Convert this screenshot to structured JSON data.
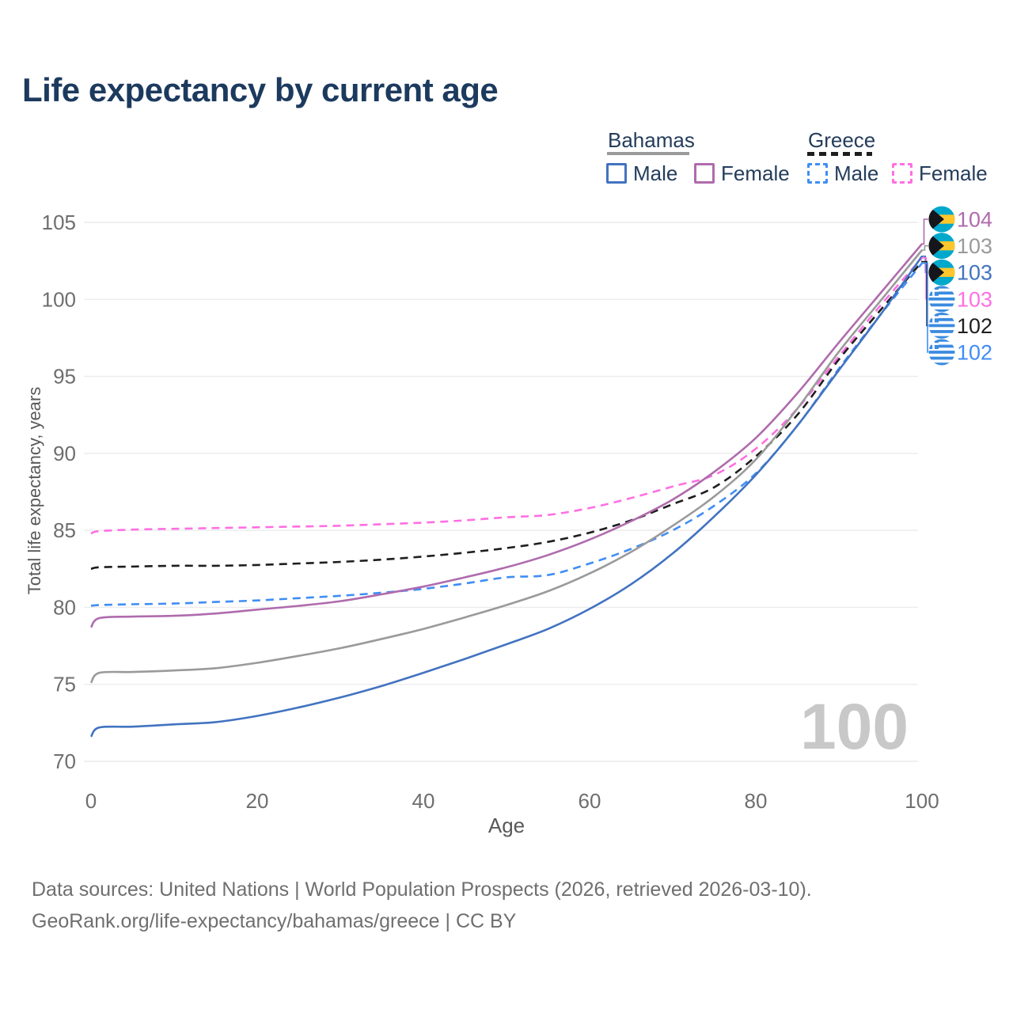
{
  "title": "Life expectancy by current age",
  "legend": {
    "bahamas": {
      "label": "Bahamas",
      "male_label": "Male",
      "female_label": "Female"
    },
    "greece": {
      "label": "Greece",
      "male_label": "Male",
      "female_label": "Female"
    }
  },
  "age_indicator": "100",
  "footer": {
    "line1": "Data sources: United Nations | World Population Prospects (2026, retrieved 2026-03-10).",
    "line2": "GeoRank.org/life-expectancy/bahamas/greece | CC BY"
  },
  "chart_data": {
    "type": "line",
    "title": "Life expectancy by current age",
    "xlabel": "Age",
    "ylabel": "Total life expectancy, years",
    "xlim": [
      0,
      100
    ],
    "ylim": [
      70,
      105
    ],
    "x_ticks": [
      0,
      20,
      40,
      60,
      80,
      100
    ],
    "y_ticks": [
      70,
      75,
      80,
      85,
      90,
      95,
      100,
      105
    ],
    "grid": "horizontal",
    "legend_position": "top-right",
    "x": [
      0,
      1,
      5,
      10,
      15,
      20,
      25,
      30,
      35,
      40,
      45,
      50,
      55,
      60,
      65,
      70,
      75,
      80,
      85,
      90,
      95,
      100
    ],
    "series": [
      {
        "key": "greece_female",
        "name": "Greece — Female",
        "country": "Greece",
        "sex": "Female",
        "color": "#ff6fe3",
        "dashed": true,
        "flag": "greece",
        "end_label": "103",
        "values": [
          84.8,
          84.95,
          85.05,
          85.1,
          85.15,
          85.2,
          85.25,
          85.3,
          85.4,
          85.5,
          85.65,
          85.85,
          86.0,
          86.45,
          87.1,
          87.85,
          88.6,
          90.3,
          92.9,
          96.3,
          99.6,
          102.7
        ]
      },
      {
        "key": "greece_total",
        "name": "Greece — Both sexes",
        "country": "Greece",
        "sex": "Both",
        "color": "#1e1e1e",
        "dashed": true,
        "flag": "greece",
        "end_label": "102",
        "values": [
          82.5,
          82.6,
          82.65,
          82.7,
          82.7,
          82.75,
          82.85,
          82.95,
          83.1,
          83.3,
          83.55,
          83.85,
          84.25,
          84.85,
          85.65,
          86.7,
          87.8,
          89.8,
          92.5,
          96.1,
          99.3,
          102.45
        ]
      },
      {
        "key": "greece_male",
        "name": "Greece — Male",
        "country": "Greece",
        "sex": "Male",
        "color": "#3f8df5",
        "dashed": true,
        "flag": "greece",
        "end_label": "102",
        "values": [
          80.1,
          80.15,
          80.2,
          80.25,
          80.35,
          80.45,
          80.6,
          80.75,
          80.95,
          81.2,
          81.55,
          81.95,
          82.1,
          82.85,
          83.8,
          85.0,
          86.6,
          88.7,
          91.8,
          95.5,
          99.0,
          102.35
        ]
      },
      {
        "key": "bahamas_total",
        "name": "Bahamas — Both sexes",
        "country": "Bahamas",
        "sex": "Both",
        "color": "#9a9a9a",
        "dashed": false,
        "flag": "bahamas",
        "end_label": "103",
        "values": [
          75.1,
          75.75,
          75.8,
          75.9,
          76.05,
          76.4,
          76.85,
          77.35,
          77.95,
          78.6,
          79.35,
          80.15,
          81.05,
          82.2,
          83.6,
          85.3,
          87.2,
          89.6,
          92.9,
          96.6,
          99.9,
          103.2
        ]
      },
      {
        "key": "bahamas_female",
        "name": "Bahamas — Female",
        "country": "Bahamas",
        "sex": "Female",
        "color": "#af6bad",
        "dashed": false,
        "flag": "bahamas",
        "end_label": "104",
        "values": [
          78.7,
          79.3,
          79.4,
          79.45,
          79.6,
          79.85,
          80.1,
          80.4,
          80.85,
          81.35,
          81.95,
          82.6,
          83.4,
          84.4,
          85.6,
          87.0,
          88.8,
          91.0,
          93.9,
          97.2,
          100.4,
          103.6
        ]
      },
      {
        "key": "bahamas_male",
        "name": "Bahamas — Male",
        "country": "Bahamas",
        "sex": "Male",
        "color": "#4273c0",
        "dashed": false,
        "flag": "bahamas",
        "end_label": "103",
        "values": [
          71.6,
          72.2,
          72.25,
          72.4,
          72.55,
          72.95,
          73.5,
          74.15,
          74.9,
          75.75,
          76.65,
          77.6,
          78.6,
          79.9,
          81.5,
          83.5,
          85.9,
          88.6,
          91.8,
          95.4,
          99.0,
          102.8
        ]
      }
    ]
  }
}
